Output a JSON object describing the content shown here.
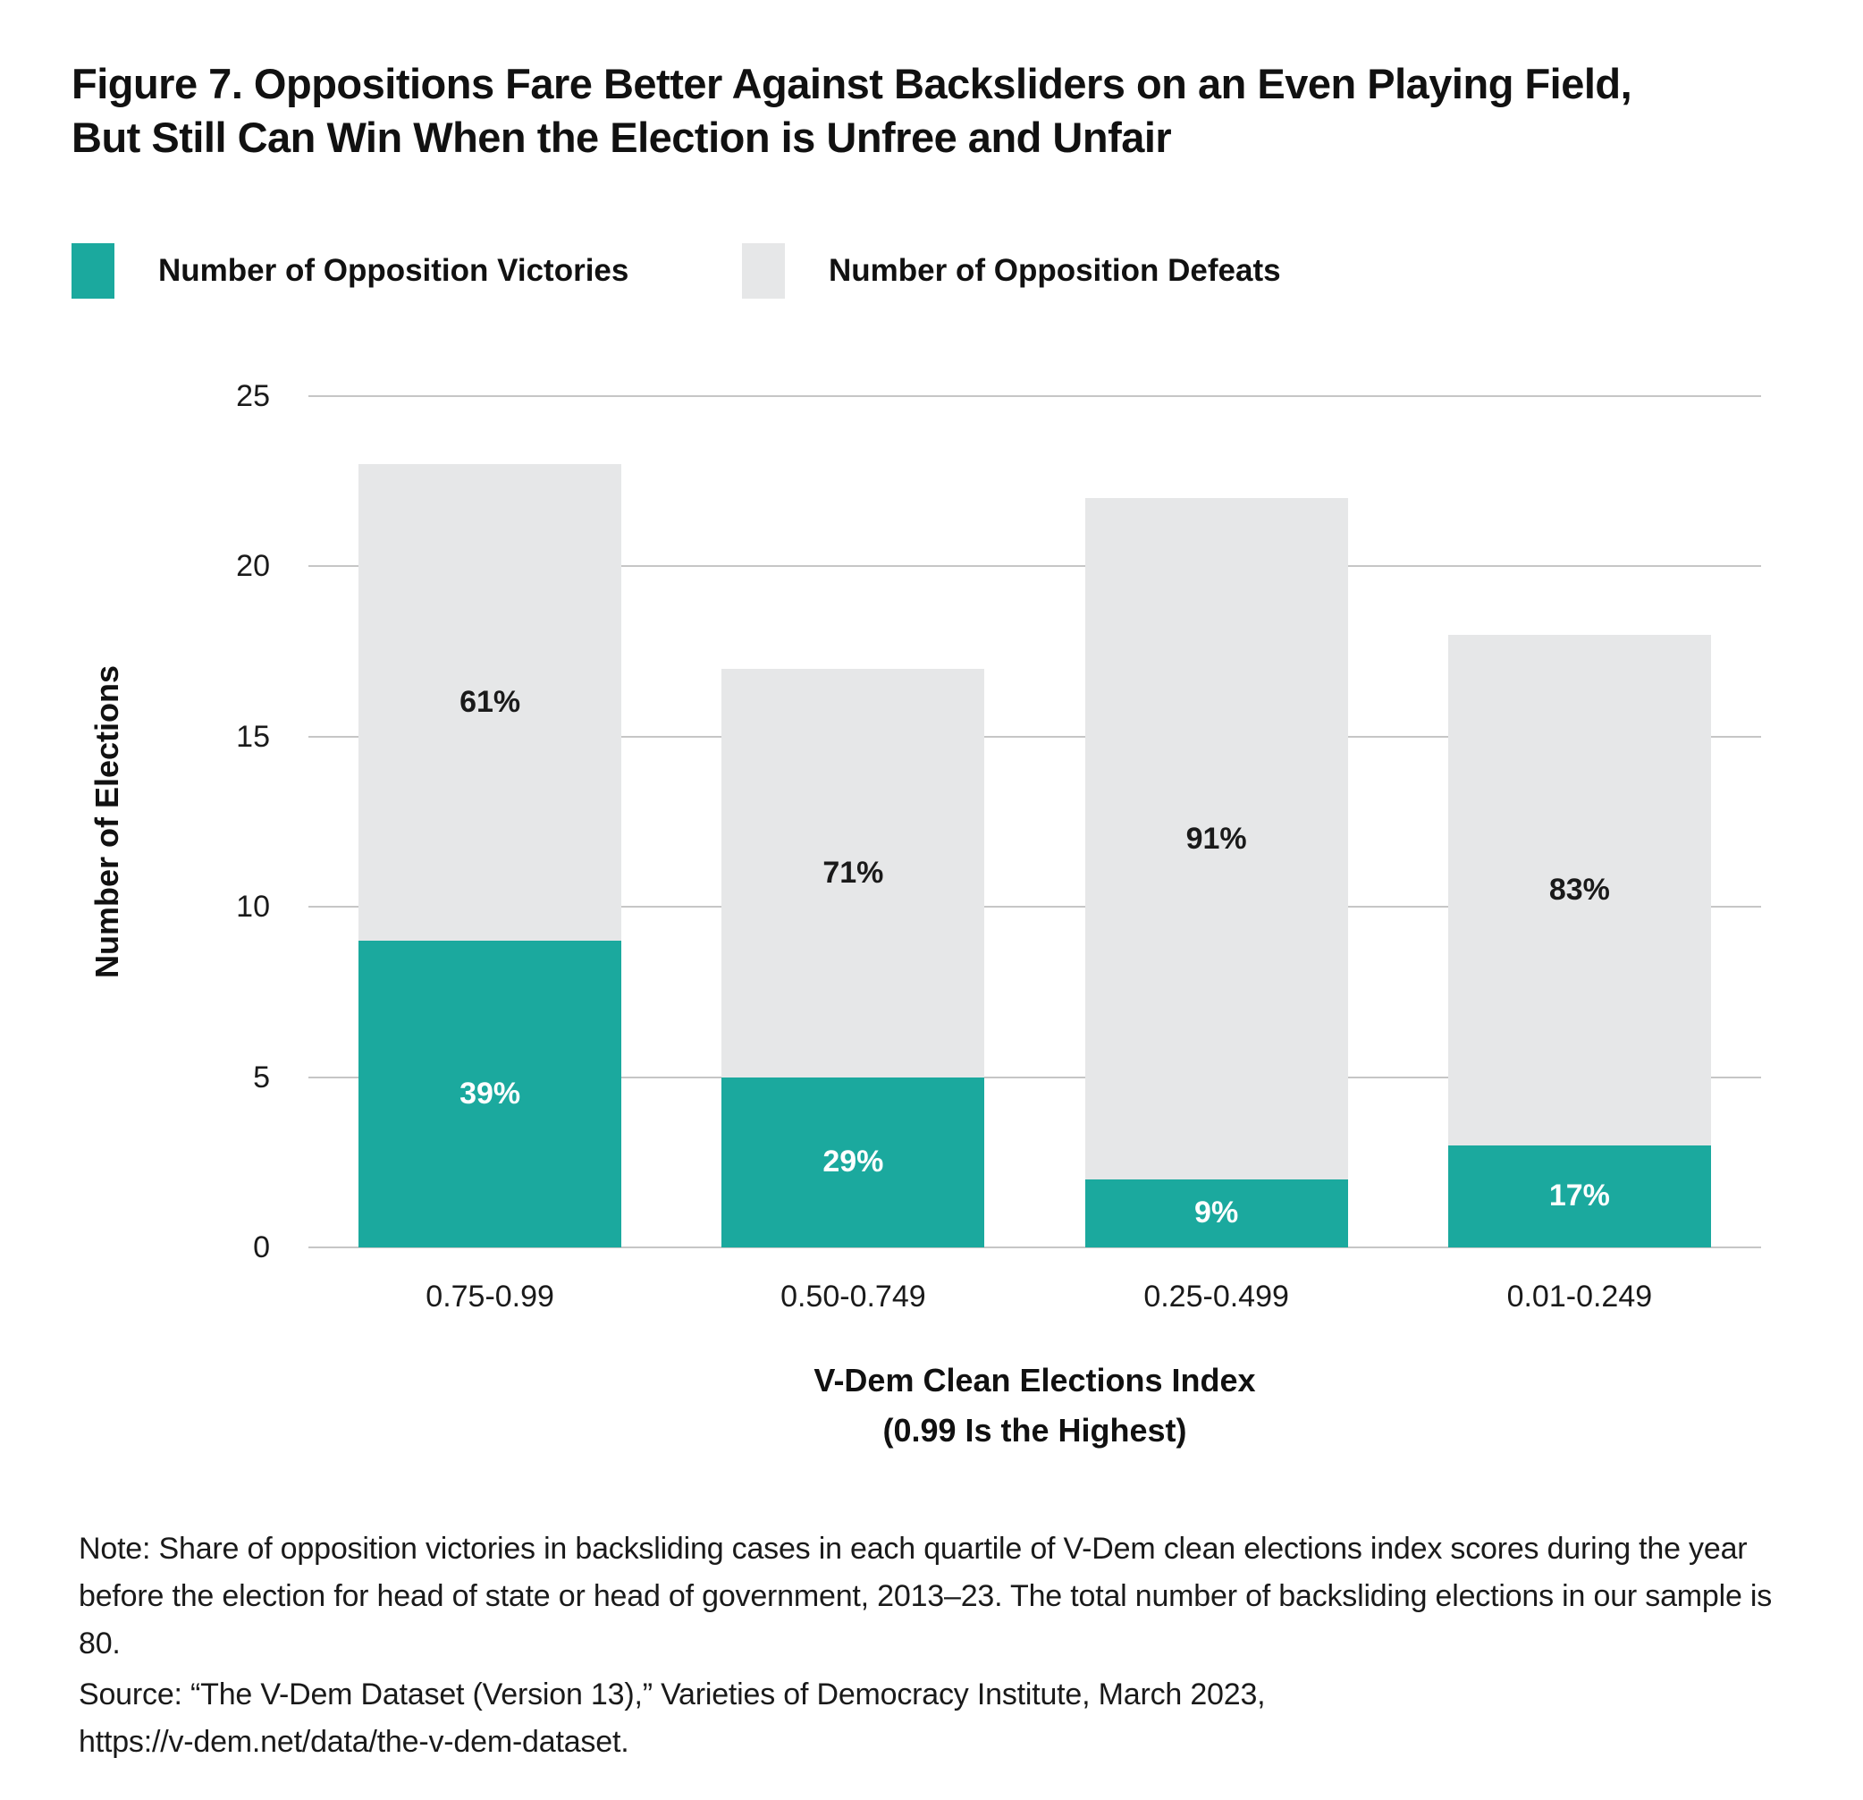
{
  "title": "Figure 7. Oppositions Fare Better Against Backsliders on an Even Playing Field,\nBut Still Can Win When the Election is Unfree and Unfair",
  "legend": {
    "victories": {
      "label": "Number of Opposition Victories",
      "color": "#1BA99E"
    },
    "defeats": {
      "label": "Number of Opposition Defeats",
      "color": "#E6E7E8"
    }
  },
  "chart_data": {
    "type": "bar",
    "stacked": true,
    "title": "Figure 7. Oppositions Fare Better Against Backsliders on an Even Playing Field, But Still Can Win When the Election is Unfree and Unfair",
    "categories": [
      "0.75-0.99",
      "0.50-0.749",
      "0.25-0.499",
      "0.01-0.249"
    ],
    "series": [
      {
        "name": "Number of Opposition Victories",
        "values": [
          9,
          5,
          2,
          3
        ],
        "labels": [
          "39%",
          "29%",
          "9%",
          "17%"
        ],
        "color": "#1BA99E",
        "label_color": "#ffffff"
      },
      {
        "name": "Number of Opposition Defeats",
        "values": [
          14,
          12,
          20,
          15
        ],
        "labels": [
          "61%",
          "71%",
          "91%",
          "83%"
        ],
        "color": "#E6E7E8",
        "label_color": "#1a1a1a"
      }
    ],
    "totals": [
      23,
      17,
      22,
      18
    ],
    "xlabel": "V-Dem Clean Elections Index\n(0.99 Is the Highest)",
    "ylabel": "Number of Elections",
    "yticks": [
      0,
      5,
      10,
      15,
      20,
      25
    ],
    "ylim": [
      0,
      25
    ],
    "grid": "horizontal",
    "gridline_color": "#c6c6c6",
    "legend_position": "top-left"
  },
  "note": "Note: Share of opposition victories in backsliding cases in each quartile of V-Dem clean elections index scores during the year before the election for head of state or head of government, 2013–23. The total number of backsliding elections in our sample is 80.",
  "source": "Source: “The V-Dem Dataset (Version 13),” Varieties of Democracy Institute, March 2023,\nhttps://v-dem.net/data/the-v-dem-dataset."
}
